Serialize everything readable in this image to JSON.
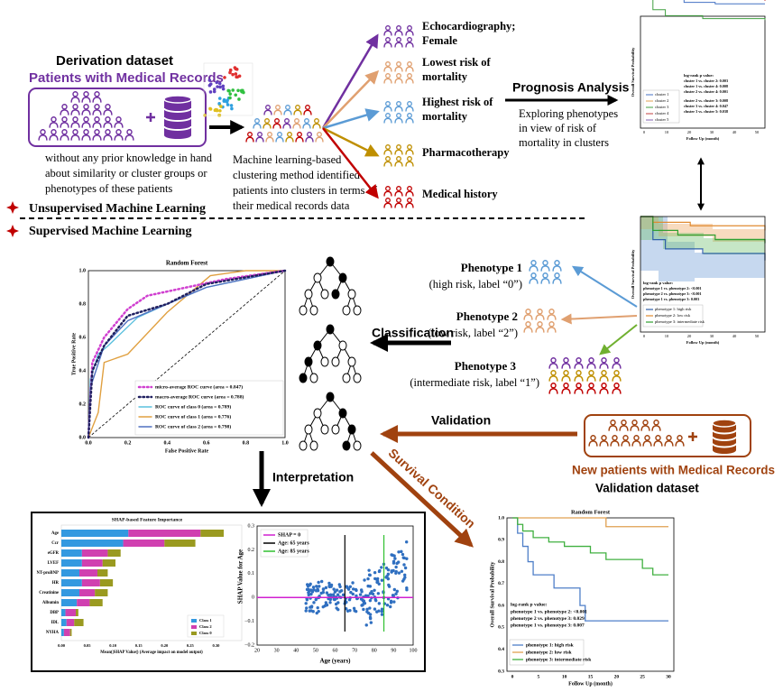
{
  "derivation": {
    "title": "Derivation dataset",
    "subtitle": "Patients with Medical Records",
    "description": [
      "without any prior knowledge in hand",
      "about similarity or cluster groups or",
      "phenotypes of these patients"
    ]
  },
  "clustering": {
    "description": [
      "Machine learning-based",
      "clustering method identified",
      "patients into clusters in terms of",
      "their medical records data"
    ],
    "clusters": [
      [
        "Echocardiography;",
        "Female"
      ],
      [
        "Lowest risk of",
        "mortality"
      ],
      [
        "Highest risk of",
        "mortality"
      ],
      [
        "Pharmacotherapy"
      ],
      [
        "Medical history"
      ]
    ]
  },
  "prognosis": {
    "title": "Prognosis Analysis",
    "description": [
      "Exploring phenotypes",
      "in view of risk of",
      "mortality in clusters"
    ]
  },
  "cluster_km": {
    "ylabel": "Overall Survival Probability",
    "xlabel": "Follow Up (month)",
    "xticks": [
      "0",
      "10",
      "20",
      "30",
      "40",
      "50"
    ],
    "pvalue_title": "log-rank p value:",
    "pvalues": [
      "cluster 1 vs. cluster 2: 0.003",
      "cluster 1 vs. cluster 4: 0.008",
      "cluster 2 vs. cluster 4: 0.001",
      "cluster 2 vs. cluster 3: 0.008",
      "cluster 3 vs. cluster 4: 0.047",
      "cluster 3 vs. cluster 5: 0.038"
    ],
    "legend": [
      "cluster 1",
      "cluster 2",
      "cluster 3",
      "cluster 4",
      "cluster 5"
    ]
  },
  "phenotype_km": {
    "ylabel": "Overall Survival Probability",
    "xlabel": "Follow Up (month)",
    "xticks": [
      "0",
      "10",
      "20",
      "30",
      "40",
      "50"
    ],
    "pvalue_title": "log-rank p value:",
    "pvalues": [
      "phenotype 1 vs. phenotype 2: <0.001",
      "phenotype 2 vs. phenotype 3: <0.001",
      "phenotype 1 vs. phenotype 3: 0.003"
    ],
    "legend": [
      "phenotype 1: high risk",
      "phenotype 2: low risk",
      "phenotype 3: intermediate risk"
    ]
  },
  "sections": {
    "unsupervised": "Unsupervised Machine Learning",
    "supervised": "Supervised Machine Learning"
  },
  "phenotypes": [
    {
      "title": "Phenotype 1",
      "label": "(high risk, label “0”)"
    },
    {
      "title": "Phenotype 2",
      "label": "(low risk, label “2”)"
    },
    {
      "title": "Phenotype 3",
      "label": "(intermediate risk, label “1”)"
    }
  ],
  "steps": {
    "classification": "Classification",
    "validation": "Validation",
    "interpretation": "Interpretation",
    "survival": "Survival Condition"
  },
  "validation": {
    "title": "New patients with Medical Records",
    "subtitle": "Validation dataset"
  },
  "roc": {
    "title": "Random Forest",
    "xlabel": "False Positive Rate",
    "ylabel": "True Positive Rate",
    "xticks": [
      "0.0",
      "0.2",
      "0.4",
      "0.6",
      "0.8",
      "1.0"
    ],
    "yticks": [
      "0.0",
      "0.2",
      "0.4",
      "0.6",
      "0.8",
      "1.0"
    ],
    "legend": [
      "micro-average ROC curve (area = 0.847)",
      "macro-average ROC curve (area = 0.788)",
      "ROC curve of class 0 (area = 0.789)",
      "ROC curve of class 1 (area = 0.776)",
      "ROC curve of class 2 (area = 0.798)"
    ]
  },
  "shap_importance": {
    "title": "SHAP-based Feature Importance",
    "features": [
      "Age",
      "Ccr",
      "eGFR",
      "LVEF",
      "NT-proBNP",
      "HR",
      "Creatinine",
      "Albumin",
      "DBP",
      "IDL",
      "NYHA"
    ],
    "xlabel": "Mean(|SHAP Value|) (Average impact on model output)",
    "xticks": [
      "0.00",
      "0.05",
      "0.10",
      "0.15",
      "0.20",
      "0.25",
      "0.30"
    ],
    "legend": [
      "Class 1",
      "Class 2",
      "Class 0"
    ]
  },
  "shap_dependence": {
    "ylabel": "SHAP Value for Age",
    "xlabel": "Age (years)",
    "xticks": [
      "20",
      "30",
      "40",
      "50",
      "60",
      "70",
      "80",
      "90",
      "100"
    ],
    "yticks": [
      "0.3",
      "0.2",
      "0.1",
      "0",
      "−0.1",
      "−0.2"
    ],
    "legend": [
      "SHAP = 0",
      "Age: 65 years",
      "Age: 85 years"
    ]
  },
  "survival": {
    "title": "Random Forest",
    "ylabel": "Overall Survival Probability",
    "xlabel": "Follow Up (month)",
    "xticks": [
      "0",
      "5",
      "10",
      "15",
      "20",
      "25",
      "30"
    ],
    "yticks": [
      "1.0",
      "0.9",
      "0.8",
      "0.7",
      "0.6",
      "0.5",
      "0.4",
      "0.3"
    ],
    "pvalue_title": "log-rank p value:",
    "pvalues": [
      "phenotype 1 vs. phenotype 2: <0.001",
      "phenotype 2 vs. phenotype 3: 0.029",
      "phenotype 1 vs. phenotype 3: 0.007"
    ],
    "legend": [
      "phenotype 1: high risk",
      "phenotype 2: low risk",
      "phenotype 3: intermediate risk"
    ]
  }
}
